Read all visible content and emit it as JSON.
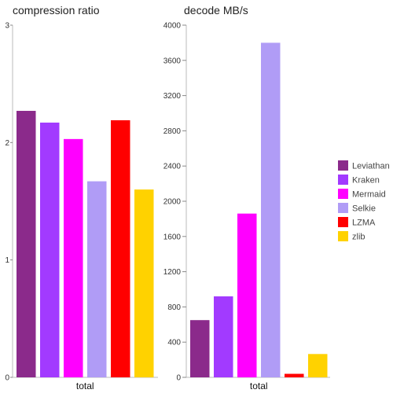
{
  "chart_data": [
    {
      "type": "bar",
      "title": "compression ratio",
      "categories": [
        "total"
      ],
      "series": [
        {
          "name": "Leviathan",
          "values": [
            2.27
          ]
        },
        {
          "name": "Kraken",
          "values": [
            2.17
          ]
        },
        {
          "name": "Mermaid",
          "values": [
            2.03
          ]
        },
        {
          "name": "Selkie",
          "values": [
            1.67
          ]
        },
        {
          "name": "LZMA",
          "values": [
            2.19
          ]
        },
        {
          "name": "zlib",
          "values": [
            1.6
          ]
        }
      ],
      "ylim": [
        0,
        3
      ],
      "yticks": [
        "0",
        "1",
        "2",
        "3"
      ],
      "grid": false
    },
    {
      "type": "bar",
      "title": "decode MB/s",
      "categories": [
        "total"
      ],
      "series": [
        {
          "name": "Leviathan",
          "values": [
            650
          ]
        },
        {
          "name": "Kraken",
          "values": [
            920
          ]
        },
        {
          "name": "Mermaid",
          "values": [
            1860
          ]
        },
        {
          "name": "Selkie",
          "values": [
            3800
          ]
        },
        {
          "name": "LZMA",
          "values": [
            40
          ]
        },
        {
          "name": "zlib",
          "values": [
            265
          ]
        }
      ],
      "ylim": [
        0,
        4000
      ],
      "yticks": [
        "0",
        "400",
        "800",
        "1200",
        "1600",
        "2000",
        "2400",
        "2800",
        "3200",
        "3600",
        "4000"
      ],
      "grid": false
    }
  ],
  "legend": {
    "position": "right",
    "items": [
      {
        "label": "Leviathan",
        "color": "#8B2A8B"
      },
      {
        "label": "Kraken",
        "color": "#A23AFF"
      },
      {
        "label": "Mermaid",
        "color": "#FF00FF"
      },
      {
        "label": "Selkie",
        "color": "#B09CF6"
      },
      {
        "label": "LZMA",
        "color": "#FF0000"
      },
      {
        "label": "zlib",
        "color": "#FFD200"
      }
    ]
  }
}
